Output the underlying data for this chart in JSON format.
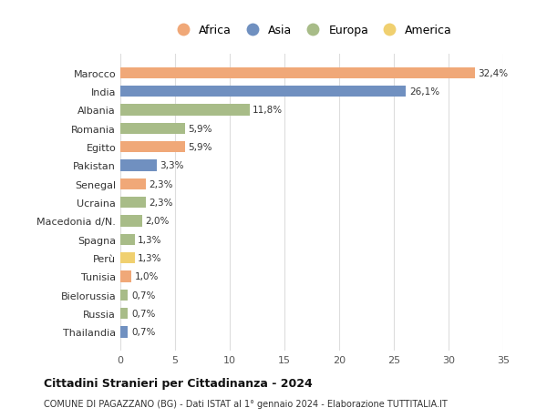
{
  "countries": [
    "Marocco",
    "India",
    "Albania",
    "Romania",
    "Egitto",
    "Pakistan",
    "Senegal",
    "Ucraina",
    "Macedonia d/N.",
    "Spagna",
    "Perù",
    "Tunisia",
    "Bielorussia",
    "Russia",
    "Thailandia"
  ],
  "values": [
    32.4,
    26.1,
    11.8,
    5.9,
    5.9,
    3.3,
    2.3,
    2.3,
    2.0,
    1.3,
    1.3,
    1.0,
    0.7,
    0.7,
    0.7
  ],
  "labels": [
    "32,4%",
    "26,1%",
    "11,8%",
    "5,9%",
    "5,9%",
    "3,3%",
    "2,3%",
    "2,3%",
    "2,0%",
    "1,3%",
    "1,3%",
    "1,0%",
    "0,7%",
    "0,7%",
    "0,7%"
  ],
  "continents": [
    "Africa",
    "Asia",
    "Europa",
    "Europa",
    "Africa",
    "Asia",
    "Africa",
    "Europa",
    "Europa",
    "Europa",
    "America",
    "Africa",
    "Europa",
    "Europa",
    "Asia"
  ],
  "colors": {
    "Africa": "#F0A878",
    "Asia": "#7090C0",
    "Europa": "#A8BC88",
    "America": "#F0D070"
  },
  "legend_order": [
    "Africa",
    "Asia",
    "Europa",
    "America"
  ],
  "title": "Cittadini Stranieri per Cittadinanza - 2024",
  "subtitle": "COMUNE DI PAGAZZANO (BG) - Dati ISTAT al 1° gennaio 2024 - Elaborazione TUTTITALIA.IT",
  "xlim": [
    0,
    35
  ],
  "xticks": [
    0,
    5,
    10,
    15,
    20,
    25,
    30,
    35
  ],
  "background_color": "#ffffff",
  "grid_color": "#dddddd"
}
